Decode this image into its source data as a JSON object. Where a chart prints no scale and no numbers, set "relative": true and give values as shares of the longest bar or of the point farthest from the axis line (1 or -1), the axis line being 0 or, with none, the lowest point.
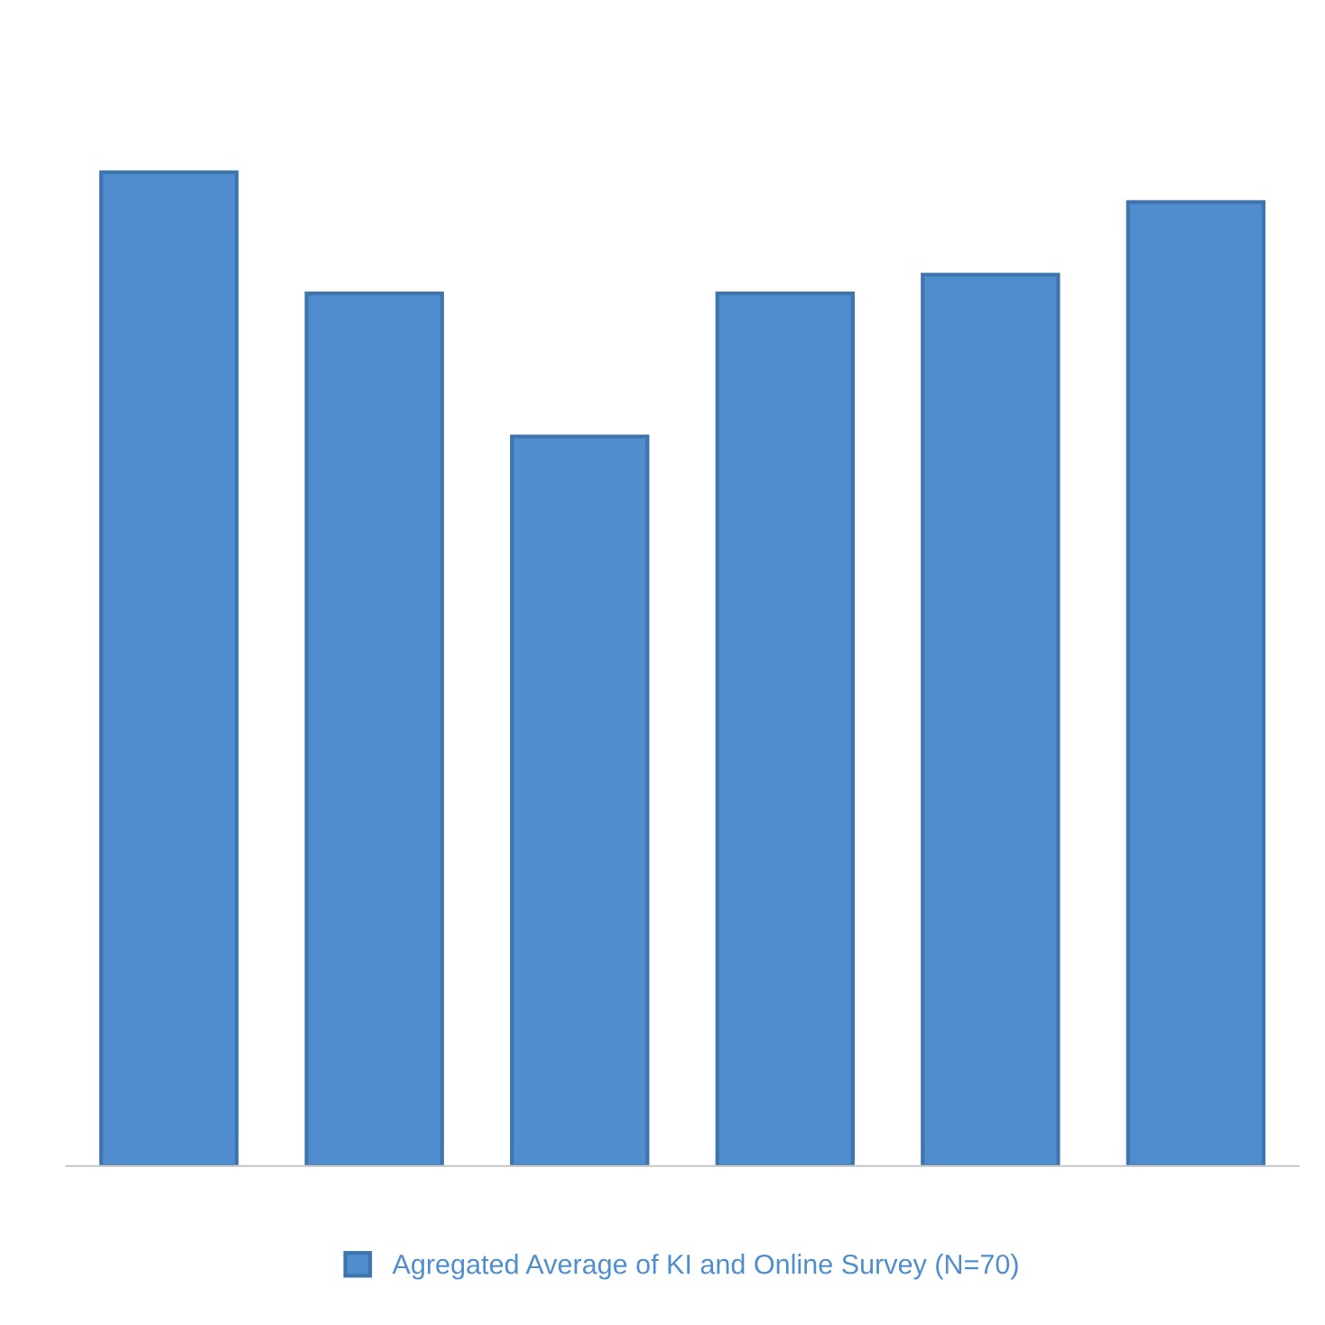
{
  "chart_data": {
    "type": "bar",
    "relative": true,
    "categories": [
      null,
      null,
      null,
      null,
      null,
      null
    ],
    "series": [
      {
        "name": "Agregated Average of KI and Online Survey (N=70)",
        "color": "#4f8dcf",
        "values": [
          1,
          0.878,
          0.734,
          0.878,
          0.897,
          0.97
        ]
      }
    ],
    "legend": "bottom"
  }
}
